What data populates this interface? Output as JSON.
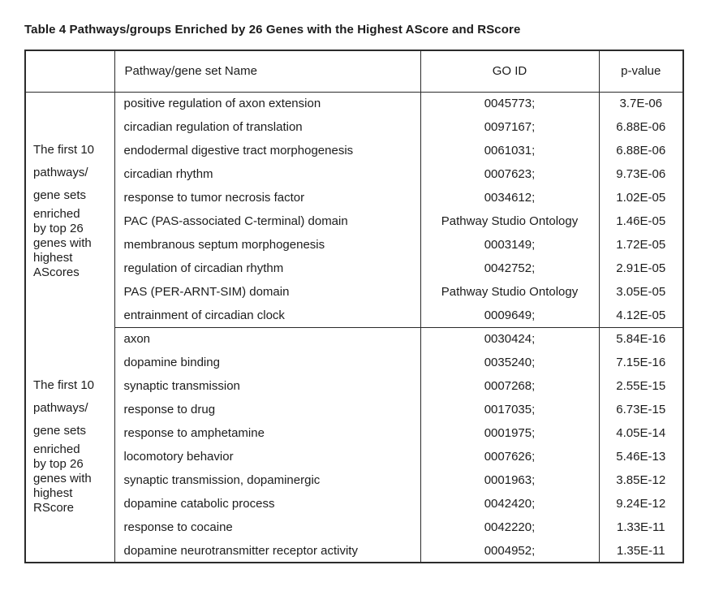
{
  "title": "Table 4 Pathways/groups Enriched by 26 Genes with the Highest AScore and RScore",
  "table": {
    "header": {
      "label_col": "",
      "name_col": "Pathway/gene set Name",
      "go_col": "GO ID",
      "p_col": "p-value"
    },
    "sections": [
      {
        "label_lines_loose": [
          "The first 10",
          "pathways/",
          "gene sets"
        ],
        "label_lines_tight": [
          "enriched",
          "by top 26",
          "genes with",
          "highest",
          "AScores"
        ],
        "rows": [
          {
            "name": "positive regulation of axon extension",
            "go_id": "0045773;",
            "p_value": "3.7E-06"
          },
          {
            "name": "circadian regulation of translation",
            "go_id": "0097167;",
            "p_value": "6.88E-06"
          },
          {
            "name": "endodermal digestive tract morphogenesis",
            "go_id": "0061031;",
            "p_value": "6.88E-06"
          },
          {
            "name": "circadian rhythm",
            "go_id": "0007623;",
            "p_value": "9.73E-06"
          },
          {
            "name": "response to tumor necrosis factor",
            "go_id": "0034612;",
            "p_value": "1.02E-05"
          },
          {
            "name": "PAC (PAS-associated C-terminal) domain",
            "go_id": "Pathway Studio Ontology",
            "p_value": "1.46E-05"
          },
          {
            "name": "membranous septum morphogenesis",
            "go_id": "0003149;",
            "p_value": "1.72E-05"
          },
          {
            "name": "regulation of circadian rhythm",
            "go_id": "0042752;",
            "p_value": "2.91E-05"
          },
          {
            "name": "PAS (PER-ARNT-SIM) domain",
            "go_id": "Pathway Studio Ontology",
            "p_value": "3.05E-05"
          },
          {
            "name": "entrainment of circadian clock",
            "go_id": "0009649;",
            "p_value": "4.12E-05"
          }
        ]
      },
      {
        "label_lines_loose": [
          "The first 10",
          "pathways/",
          "gene sets"
        ],
        "label_lines_tight": [
          "enriched",
          "by top 26",
          "genes with",
          "highest",
          "RScore"
        ],
        "rows": [
          {
            "name": "axon",
            "go_id": "0030424;",
            "p_value": "5.84E-16"
          },
          {
            "name": "dopamine binding",
            "go_id": "0035240;",
            "p_value": "7.15E-16"
          },
          {
            "name": "synaptic transmission",
            "go_id": "0007268;",
            "p_value": "2.55E-15"
          },
          {
            "name": "response to drug",
            "go_id": "0017035;",
            "p_value": "6.73E-15"
          },
          {
            "name": "response to amphetamine",
            "go_id": "0001975;",
            "p_value": "4.05E-14"
          },
          {
            "name": "locomotory behavior",
            "go_id": "0007626;",
            "p_value": "5.46E-13"
          },
          {
            "name": "synaptic transmission, dopaminergic",
            "go_id": "0001963;",
            "p_value": "3.85E-12"
          },
          {
            "name": "dopamine catabolic process",
            "go_id": "0042420;",
            "p_value": "9.24E-12"
          },
          {
            "name": "response to cocaine",
            "go_id": "0042220;",
            "p_value": "1.33E-11"
          },
          {
            "name": "dopamine neurotransmitter receptor activity",
            "go_id": "0004952;",
            "p_value": "1.35E-11"
          }
        ]
      }
    ]
  },
  "colors": {
    "border": "#2b2b2b",
    "text": "#1c1c1c",
    "background": "#ffffff"
  }
}
